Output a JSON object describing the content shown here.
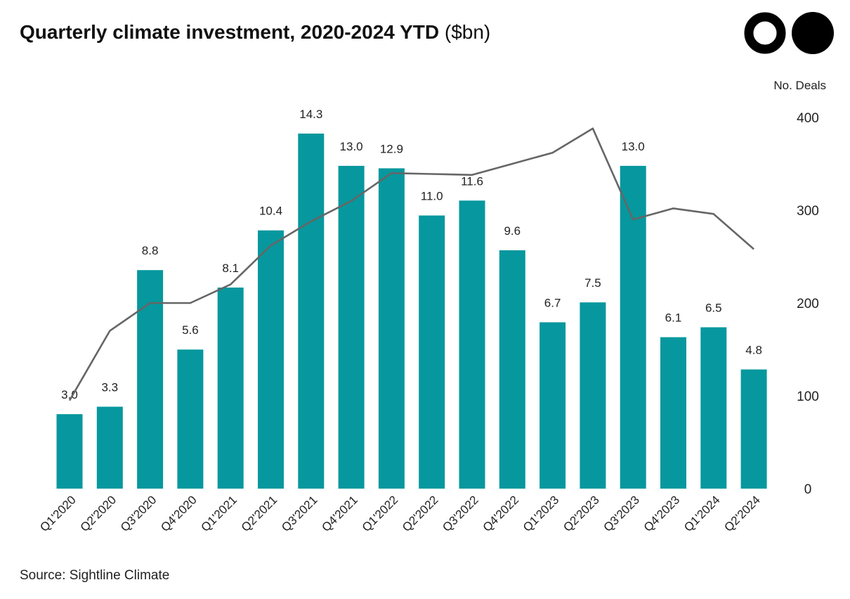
{
  "header": {
    "title": "Quarterly climate investment, 2020-2024 YTD",
    "unit": "($bn)"
  },
  "source": "Source: Sightline Climate",
  "logo": {
    "icon": "two-circles-logo"
  },
  "colors": {
    "bar": "#06989e",
    "line": "#666666",
    "text": "#111111"
  },
  "chart_data": {
    "type": "bar",
    "title": "Quarterly climate investment, 2020-2024 YTD ($bn)",
    "categories": [
      "Q1'2020",
      "Q2'2020",
      "Q3'2020",
      "Q4'2020",
      "Q1'2021",
      "Q2'2021",
      "Q3'2021",
      "Q4'2021",
      "Q1'2022",
      "Q2'2022",
      "Q3'2022",
      "Q4'2022",
      "Q1'2023",
      "Q2'2023",
      "Q3'2023",
      "Q4'2023",
      "Q1'2024",
      "Q2'2024"
    ],
    "series": [
      {
        "name": "",
        "kind": "bar",
        "axis": "left",
        "values": [
          3.0,
          3.3,
          8.8,
          5.6,
          8.1,
          10.4,
          14.3,
          13.0,
          12.9,
          11.0,
          11.6,
          9.6,
          6.7,
          7.5,
          13.0,
          6.1,
          6.5,
          4.8
        ],
        "labels": [
          "3.0",
          "3.3",
          "8.8",
          "5.6",
          "8.1",
          "10.4",
          "14.3",
          "13.0",
          "12.9",
          "11.0",
          "11.6",
          "9.6",
          "6.7",
          "7.5",
          "13.0",
          "6.1",
          "6.5",
          "4.8"
        ]
      },
      {
        "name": "No. Deals",
        "kind": "line",
        "axis": "right",
        "values": [
          95,
          170,
          200,
          200,
          220,
          262,
          288,
          310,
          340,
          339,
          338,
          350,
          362,
          388,
          290,
          302,
          296,
          258
        ]
      }
    ],
    "ylim_left": [
      0,
      15.1
    ],
    "ylim_right": [
      0,
      400
    ],
    "right_axis_label": "No. Deals",
    "right_ticks": [
      "0",
      "100",
      "200",
      "300",
      "400"
    ],
    "grid": false,
    "legend": "none"
  }
}
